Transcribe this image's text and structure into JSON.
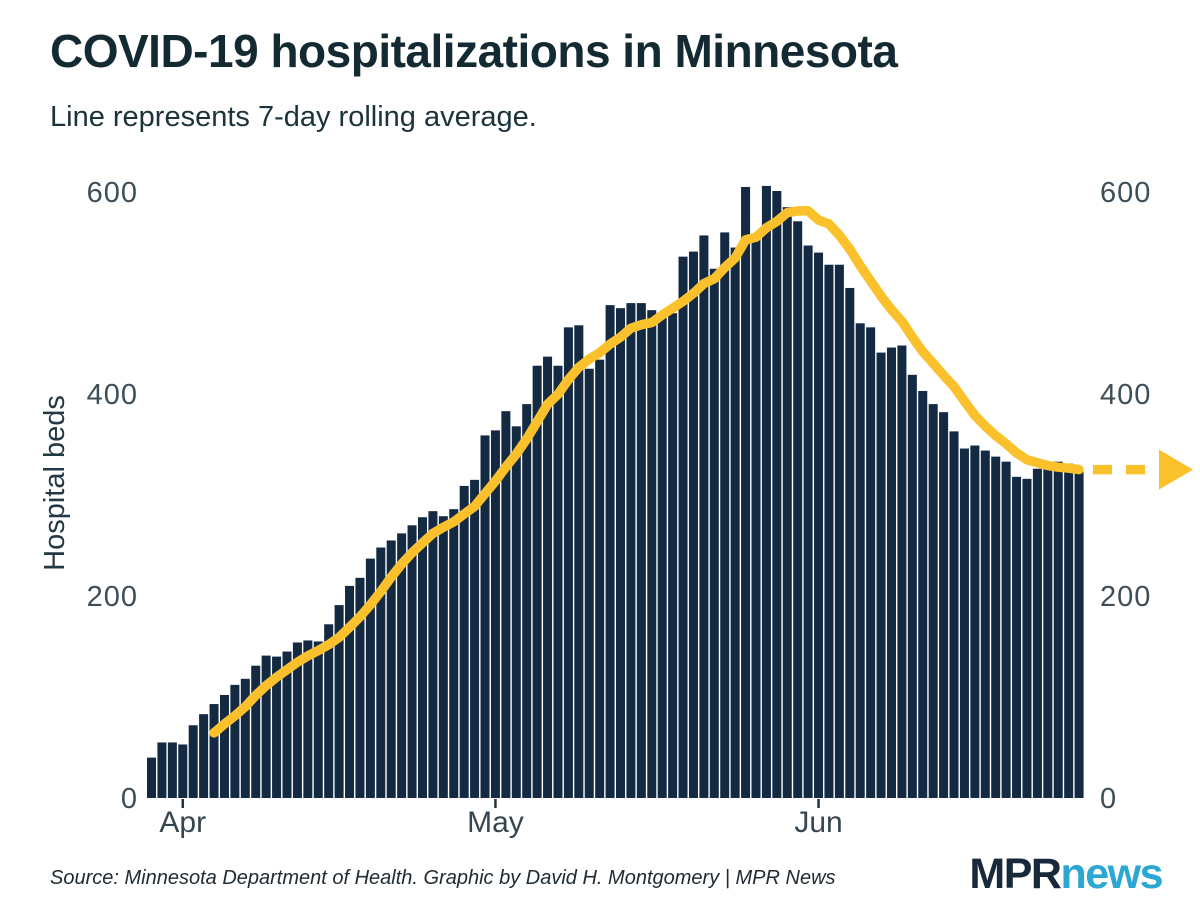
{
  "header": {
    "title": "COVID-19 hospitalizations in Minnesota",
    "subtitle": "Line represents 7-day rolling average."
  },
  "chart_data": {
    "type": "bar",
    "title": "COVID-19 hospitalizations in Minnesota",
    "subtitle": "Line represents 7-day rolling average.",
    "ylabel": "Hospital beds",
    "ylim": [
      0,
      620
    ],
    "yticks": [
      0,
      200,
      400,
      600
    ],
    "y_axis_sides": [
      "left",
      "right"
    ],
    "grid": false,
    "x_tick_labels": [
      "Apr",
      "May",
      "Jun"
    ],
    "x_tick_indices": [
      3,
      33,
      64
    ],
    "values": [
      40,
      55,
      55,
      53,
      72,
      83,
      93,
      102,
      112,
      118,
      131,
      141,
      140,
      145,
      154,
      156,
      155,
      172,
      191,
      210,
      218,
      237,
      248,
      255,
      262,
      270,
      278,
      284,
      279,
      286,
      309,
      315,
      359,
      364,
      383,
      368,
      390,
      428,
      437,
      428,
      466,
      468,
      425,
      434,
      488,
      485,
      490,
      490,
      483,
      478,
      480,
      536,
      541,
      557,
      524,
      560,
      545,
      605,
      555,
      606,
      601,
      585,
      571,
      547,
      540,
      528,
      528,
      505,
      470,
      466,
      441,
      446,
      448,
      419,
      403,
      390,
      382,
      363,
      346,
      349,
      344,
      338,
      333,
      318,
      316,
      326,
      329,
      333,
      331,
      323
    ],
    "overlay_line": {
      "description": "7-day rolling average",
      "window": 7,
      "computed_from": "values",
      "end_arrow_dashed": true
    },
    "colors": {
      "bar": "#132A42",
      "line": "#FBC12C",
      "axis_text": "#3E4E59",
      "tick_mark": "#23323C"
    }
  },
  "footer": {
    "source": "Source: Minnesota Department of Health. Graphic by David H. Montgomery | MPR News",
    "logo": {
      "mpr": "MPR",
      "news": "news"
    }
  }
}
